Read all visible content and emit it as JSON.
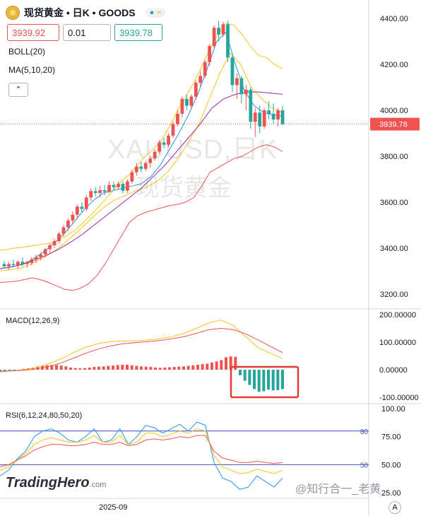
{
  "header": {
    "title": "现货黄金 • 日K • GOODS",
    "status_icons": [
      "dot-icon",
      "wave-icon"
    ],
    "sell_price": "3939.92",
    "quantity": "0.01",
    "buy_price": "3939.78"
  },
  "indicators": {
    "boll": "BOLL(20)",
    "ma": "MA(5,10,20)",
    "macd": "MACD(12,26,9)",
    "rsi": "RSI(6,12,24,80,50,20)"
  },
  "watermark": {
    "line1": "XAUUSD,日K",
    "line2": "现货黄金"
  },
  "branding": {
    "name": "TradingHero",
    "suffix": ".com",
    "credit": "@知行合一_老黄"
  },
  "xaxis": {
    "date_label": "2025-09"
  },
  "price_axis": {
    "ticks": [
      "4400.00",
      "4200.00",
      "4000.00",
      "3800.00",
      "3600.00",
      "3400.00",
      "3200.00"
    ],
    "current_label": "3939.78",
    "colors": {
      "up": "#ef5350",
      "down": "#26a69a",
      "boll": "#ef5350",
      "ma5": "#2196f3",
      "ma10": "#f5c518",
      "ma20": "#ef5350",
      "ma_mid": "#9c27b0"
    }
  },
  "macd_axis": {
    "ticks": [
      "200.00000",
      "100.00000",
      "0.00000",
      "-100.00000"
    ]
  },
  "rsi_axis": {
    "ticks": [
      "100.00",
      "75.00",
      "50.00",
      "25.00"
    ],
    "levels": [
      "80",
      "50"
    ]
  },
  "chart_data": {
    "type": "candlestick",
    "price_range": [
      3150,
      4450
    ],
    "candles": [
      [
        3330,
        3345,
        3310,
        3320
      ],
      [
        3320,
        3340,
        3305,
        3330
      ],
      [
        3330,
        3350,
        3315,
        3325
      ],
      [
        3325,
        3345,
        3310,
        3340
      ],
      [
        3340,
        3360,
        3320,
        3330
      ],
      [
        3330,
        3345,
        3315,
        3335
      ],
      [
        3335,
        3360,
        3325,
        3350
      ],
      [
        3350,
        3370,
        3335,
        3360
      ],
      [
        3360,
        3380,
        3345,
        3372
      ],
      [
        3372,
        3400,
        3360,
        3395
      ],
      [
        3395,
        3420,
        3380,
        3412
      ],
      [
        3412,
        3440,
        3400,
        3430
      ],
      [
        3430,
        3470,
        3420,
        3462
      ],
      [
        3462,
        3500,
        3450,
        3490
      ],
      [
        3490,
        3530,
        3475,
        3520
      ],
      [
        3520,
        3560,
        3505,
        3545
      ],
      [
        3545,
        3590,
        3530,
        3580
      ],
      [
        3580,
        3600,
        3555,
        3570
      ],
      [
        3570,
        3630,
        3560,
        3620
      ],
      [
        3620,
        3660,
        3605,
        3648
      ],
      [
        3648,
        3665,
        3625,
        3640
      ],
      [
        3640,
        3670,
        3620,
        3652
      ],
      [
        3652,
        3675,
        3630,
        3645
      ],
      [
        3645,
        3690,
        3640,
        3675
      ],
      [
        3675,
        3690,
        3650,
        3665
      ],
      [
        3665,
        3690,
        3655,
        3680
      ],
      [
        3680,
        3690,
        3640,
        3650
      ],
      [
        3650,
        3700,
        3640,
        3690
      ],
      [
        3690,
        3740,
        3680,
        3730
      ],
      [
        3730,
        3770,
        3715,
        3755
      ],
      [
        3755,
        3775,
        3730,
        3745
      ],
      [
        3745,
        3780,
        3735,
        3770
      ],
      [
        3770,
        3800,
        3750,
        3790
      ],
      [
        3790,
        3830,
        3780,
        3820
      ],
      [
        3820,
        3870,
        3810,
        3860
      ],
      [
        3860,
        3880,
        3835,
        3850
      ],
      [
        3850,
        3900,
        3840,
        3890
      ],
      [
        3890,
        3950,
        3880,
        3940
      ],
      [
        3940,
        4000,
        3930,
        3985
      ],
      [
        3985,
        4060,
        3970,
        4050
      ],
      [
        4050,
        4070,
        4000,
        4020
      ],
      [
        4020,
        4070,
        4005,
        4060
      ],
      [
        4060,
        4130,
        4050,
        4120
      ],
      [
        4120,
        4170,
        4100,
        4150
      ],
      [
        4150,
        4220,
        4140,
        4210
      ],
      [
        4210,
        4290,
        4195,
        4280
      ],
      [
        4280,
        4370,
        4270,
        4360
      ],
      [
        4360,
        4390,
        4300,
        4330
      ],
      [
        4330,
        4385,
        4320,
        4375
      ],
      [
        4375,
        4390,
        4210,
        4230
      ],
      [
        4230,
        4250,
        4080,
        4110
      ],
      [
        4110,
        4160,
        4050,
        4140
      ],
      [
        4140,
        4150,
        4030,
        4070
      ],
      [
        4070,
        4110,
        4000,
        4090
      ],
      [
        4090,
        4100,
        3920,
        3950
      ],
      [
        3950,
        4010,
        3885,
        3990
      ],
      [
        3990,
        4020,
        3900,
        3930
      ],
      [
        3930,
        4010,
        3920,
        4000
      ],
      [
        4000,
        4040,
        3960,
        3985
      ],
      [
        3985,
        4030,
        3940,
        3960
      ],
      [
        3960,
        4010,
        3930,
        4000
      ],
      [
        4000,
        4020,
        3935,
        3940
      ]
    ],
    "boll": {
      "upper": [
        3390,
        3395,
        3400,
        3404,
        3410,
        3415,
        3420,
        3432,
        3448,
        3470,
        3500,
        3535,
        3570,
        3610,
        3650,
        3690,
        3720,
        3760,
        3800,
        3830,
        3870,
        3930,
        4000,
        4060,
        4120,
        4190,
        4270,
        4330,
        4380,
        4370,
        4330,
        4280,
        4240,
        4230,
        4200,
        4180
      ],
      "lower": [
        3250,
        3252,
        3255,
        3262,
        3270,
        3262,
        3250,
        3235,
        3220,
        3215,
        3225,
        3245,
        3280,
        3330,
        3390,
        3450,
        3510,
        3540,
        3555,
        3565,
        3575,
        3585,
        3590,
        3600,
        3620,
        3670,
        3730,
        3750,
        3770,
        3790,
        3800,
        3820,
        3840,
        3850,
        3840,
        3820
      ]
    },
    "ma": {
      "ma5": [
        3310,
        3315,
        3325,
        3340,
        3365,
        3395,
        3430,
        3470,
        3520,
        3570,
        3610,
        3640,
        3650,
        3660,
        3670,
        3680,
        3710,
        3760,
        3830,
        3900,
        3980,
        4070,
        4180,
        4300,
        4340,
        4200,
        4080,
        4020,
        3990,
        3980,
        3975
      ],
      "ma10": [
        3300,
        3305,
        3312,
        3330,
        3355,
        3380,
        3415,
        3455,
        3495,
        3540,
        3580,
        3610,
        3630,
        3650,
        3665,
        3690,
        3730,
        3790,
        3860,
        3940,
        4050,
        4160,
        4250,
        4200,
        4100,
        4050,
        4010,
        3990
      ],
      "ma20": [
        3310,
        3318,
        3330,
        3348,
        3370,
        3395,
        3425,
        3460,
        3500,
        3540,
        3580,
        3620,
        3660,
        3710,
        3760,
        3820,
        3880,
        3940,
        4010,
        4050,
        4070,
        4080,
        4080,
        4075,
        4070
      ]
    },
    "macd": {
      "range": [
        -110,
        205
      ],
      "dif": [
        -8,
        -4,
        0,
        8,
        22,
        40,
        62,
        82,
        95,
        102,
        104,
        104,
        108,
        112,
        120,
        132,
        150,
        170,
        180,
        160,
        120,
        80,
        60,
        40
      ],
      "dea": [
        -6,
        -4,
        -2,
        3,
        12,
        25,
        42,
        60,
        75,
        86,
        94,
        98,
        102,
        106,
        112,
        120,
        132,
        145,
        150,
        145,
        130,
        108,
        85,
        62
      ],
      "hist": [
        -5,
        -4,
        -3,
        -2,
        0,
        3,
        5,
        8,
        12,
        14,
        16,
        17,
        17,
        15,
        12,
        8,
        6,
        5,
        6,
        8,
        10,
        11,
        12,
        14,
        15,
        17,
        18,
        18,
        16,
        14,
        12,
        11,
        10,
        8,
        7,
        8,
        9,
        10,
        11,
        12,
        14,
        16,
        18,
        20,
        22,
        26,
        30,
        35,
        45,
        48,
        47,
        -20,
        -40,
        -55,
        -70,
        -80,
        -78,
        -72,
        -75,
        -74,
        -70
      ]
    },
    "rsi": {
      "range": [
        20,
        100
      ],
      "rsi6": [
        40,
        45,
        55,
        62,
        75,
        80,
        82,
        78,
        72,
        70,
        75,
        82,
        70,
        72,
        82,
        68,
        75,
        85,
        83,
        78,
        82,
        86,
        80,
        88,
        85,
        52,
        38,
        35,
        28,
        30,
        40,
        35,
        30,
        38
      ],
      "rsi12": [
        45,
        48,
        54,
        60,
        68,
        72,
        74,
        72,
        70,
        70,
        72,
        76,
        70,
        70,
        76,
        68,
        70,
        78,
        78,
        75,
        77,
        80,
        78,
        82,
        80,
        58,
        48,
        45,
        42,
        43,
        46,
        44,
        42,
        45
      ],
      "rsi24": [
        48,
        50,
        54,
        58,
        63,
        66,
        68,
        68,
        67,
        67,
        68,
        70,
        68,
        68,
        70,
        67,
        68,
        72,
        73,
        72,
        73,
        75,
        74,
        76,
        76,
        62,
        56,
        54,
        52,
        52,
        53,
        52,
        51,
        52
      ]
    }
  }
}
